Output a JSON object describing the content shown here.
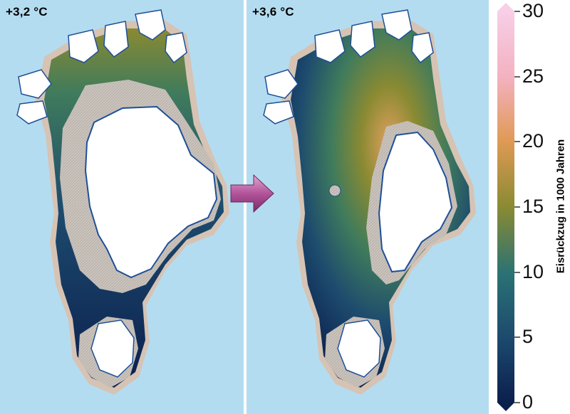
{
  "panels": [
    {
      "label": "+3,2 °C"
    },
    {
      "label": "+3,6 °C"
    }
  ],
  "legend": {
    "title": "Eisrückzug in 1000 Jahren",
    "ticks": [
      "0",
      "5",
      "10",
      "15",
      "20",
      "25",
      "30"
    ],
    "range": [
      0,
      30
    ],
    "extend": "both"
  },
  "colors": {
    "sea": "#b4dcf0",
    "land": "#d6c3b4",
    "ice": "#ffffff",
    "relict": "#c9c3bd",
    "coast": "#1e4f97",
    "scale": [
      "#0b1f4d",
      "#1d4b6e",
      "#2a7274",
      "#8a8a32",
      "#e09a55",
      "#f3b1c0",
      "#f7cfe6"
    ]
  }
}
